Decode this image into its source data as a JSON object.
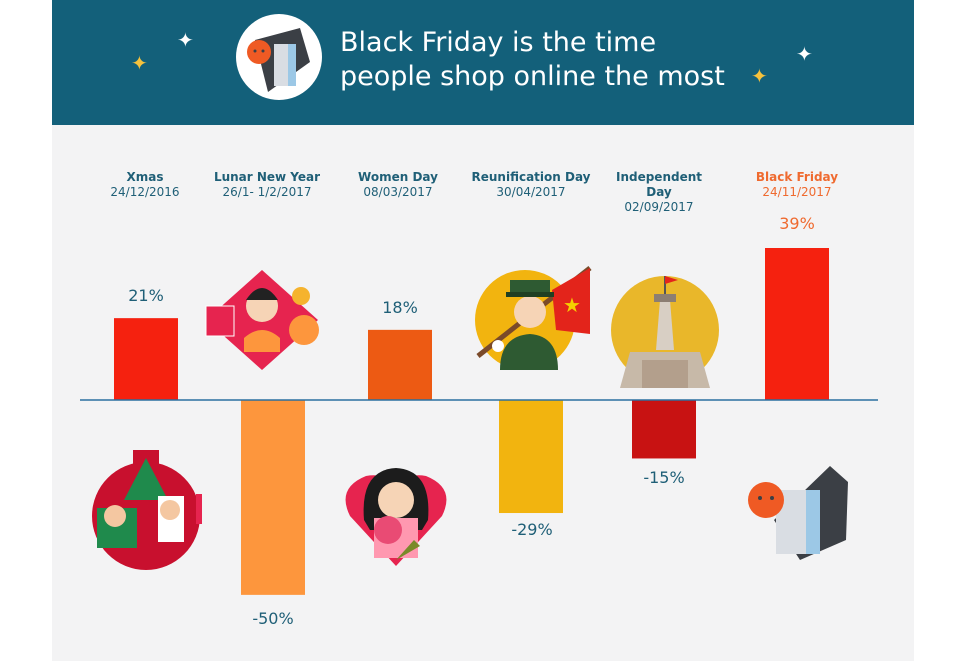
{
  "chart_data": {
    "type": "bar",
    "title_lines": [
      "Black Friday is the time",
      "people shop online the most"
    ],
    "categories": [
      {
        "name": "Xmas",
        "date": "24/12/2016"
      },
      {
        "name": "Lunar New Year",
        "date": "26/1- 1/2/2017"
      },
      {
        "name": "Women Day",
        "date": "08/03/2017"
      },
      {
        "name": "Reunification Day",
        "date": "30/04/2017"
      },
      {
        "name": "Independent",
        "name2": "Day",
        "date": "02/09/2017"
      },
      {
        "name": "Black Friday",
        "date": "24/11/2017"
      }
    ],
    "values": [
      21,
      -50,
      18,
      -29,
      -15,
      39
    ],
    "value_labels": [
      "21%",
      "-50%",
      "18%",
      "-29%",
      "-15%",
      "39%"
    ],
    "highlight_index": 5
  },
  "colors": {
    "header": "#13607a",
    "title_text": "#ffffff",
    "label_text": "#1f5f77",
    "highlight_text": "#ef6a2f",
    "baseline": "#2a6fa0",
    "bars": [
      "#f5210f",
      "#fd963d",
      "#ed5a13",
      "#f2b40f",
      "#c81212",
      "#f5210f"
    ]
  },
  "icons": {
    "header": "price-tag-icon",
    "per_category": [
      "christmas-ornament-icon",
      "lunar-new-year-girl-icon",
      "women-day-girl-icon",
      "soldier-flag-icon",
      "flag-tower-icon",
      "price-tag-sun-icon"
    ]
  }
}
